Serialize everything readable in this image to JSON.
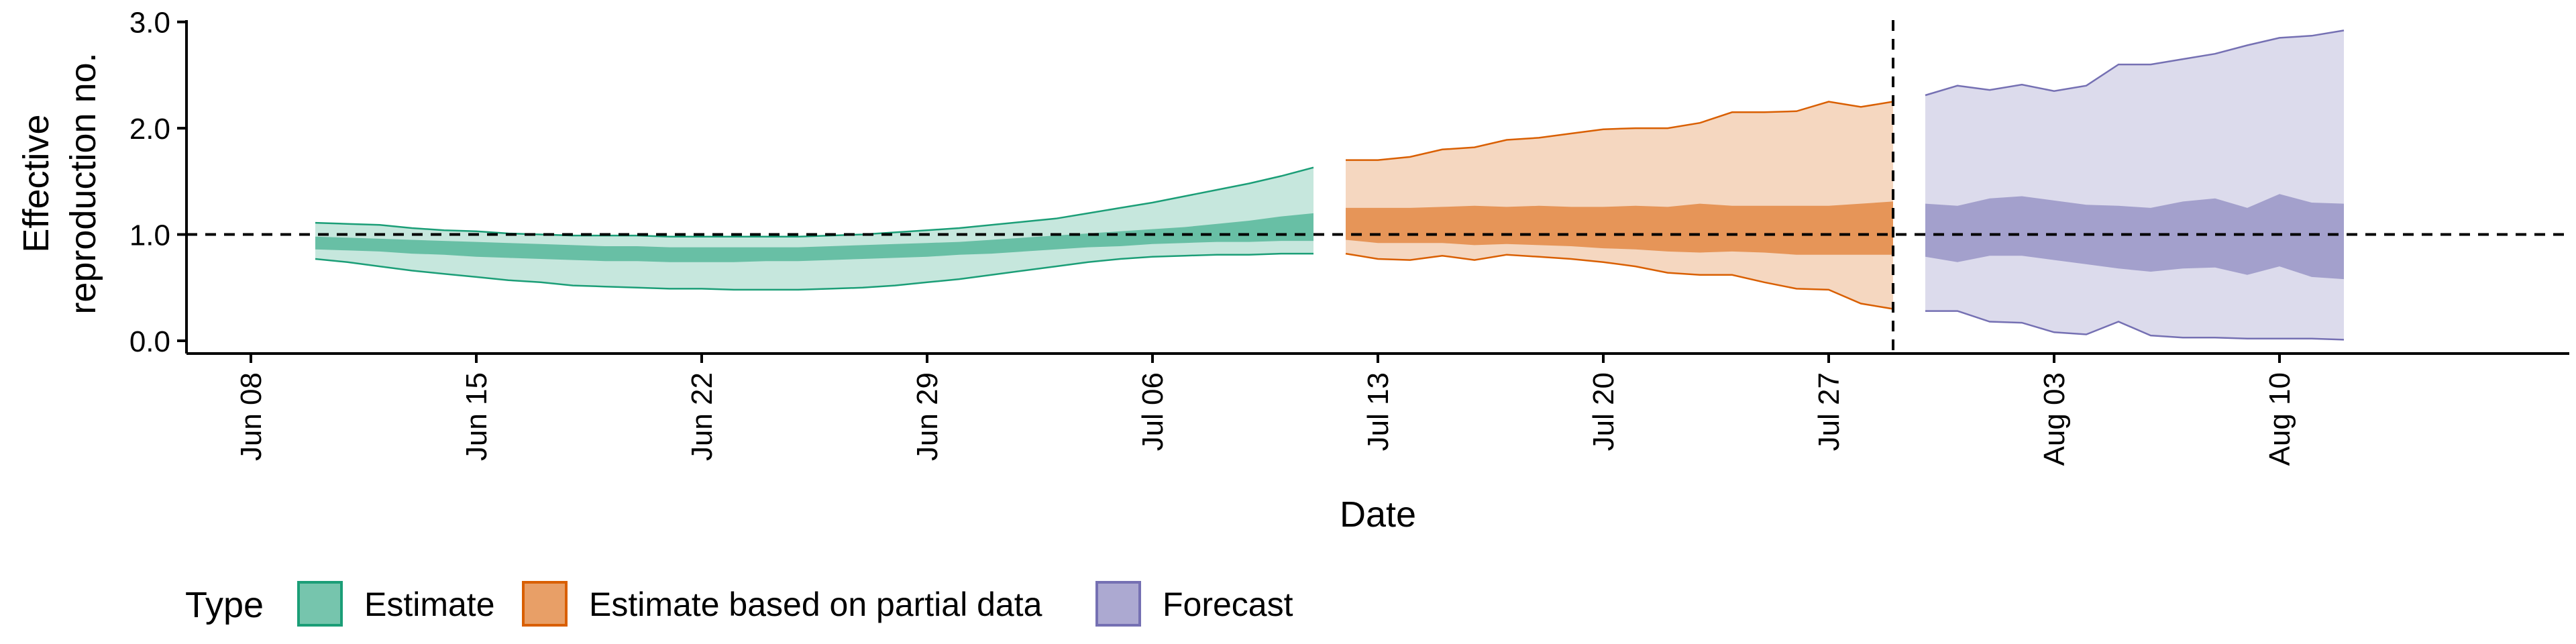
{
  "chart_data": {
    "type": "area",
    "xlabel": "Date",
    "ylabel_line1": "Effective",
    "ylabel_line2": "reproduction no.",
    "x_ticks": [
      {
        "date": "2020-06-08",
        "label": "Jun 08"
      },
      {
        "date": "2020-06-15",
        "label": "Jun 15"
      },
      {
        "date": "2020-06-22",
        "label": "Jun 22"
      },
      {
        "date": "2020-06-29",
        "label": "Jun 29"
      },
      {
        "date": "2020-07-06",
        "label": "Jul 06"
      },
      {
        "date": "2020-07-13",
        "label": "Jul 13"
      },
      {
        "date": "2020-07-20",
        "label": "Jul 20"
      },
      {
        "date": "2020-07-27",
        "label": "Jul 27"
      },
      {
        "date": "2020-08-03",
        "label": "Aug 03"
      },
      {
        "date": "2020-08-10",
        "label": "Aug 10"
      }
    ],
    "y_ticks": [
      {
        "value": 0,
        "label": "0.0"
      },
      {
        "value": 1,
        "label": "1.0"
      },
      {
        "value": 2,
        "label": "2.0"
      },
      {
        "value": 3,
        "label": "3.0"
      }
    ],
    "xlim": [
      "2020-06-06",
      "2020-08-19"
    ],
    "ylim": [
      -0.12,
      3.08
    ],
    "reference_line_y": 1.0,
    "vertical_line_x": "2020-07-29",
    "legend": {
      "title": "Type",
      "position": "bottom-left",
      "items": [
        {
          "label": "Estimate",
          "fill": "#1b9e77",
          "stroke": "#1b9e77"
        },
        {
          "label": "Estimate based on partial data",
          "fill": "#d95f02",
          "stroke": "#d95f02"
        },
        {
          "label": "Forecast",
          "fill": "#7570b3",
          "stroke": "#7570b3"
        }
      ]
    },
    "series": [
      {
        "name": "Estimate",
        "color": "#1b9e77",
        "x": [
          "2020-06-10",
          "2020-06-11",
          "2020-06-12",
          "2020-06-13",
          "2020-06-14",
          "2020-06-15",
          "2020-06-16",
          "2020-06-17",
          "2020-06-18",
          "2020-06-19",
          "2020-06-20",
          "2020-06-21",
          "2020-06-22",
          "2020-06-23",
          "2020-06-24",
          "2020-06-25",
          "2020-06-26",
          "2020-06-27",
          "2020-06-28",
          "2020-06-29",
          "2020-06-30",
          "2020-07-01",
          "2020-07-02",
          "2020-07-03",
          "2020-07-04",
          "2020-07-05",
          "2020-07-06",
          "2020-07-07",
          "2020-07-08",
          "2020-07-09",
          "2020-07-10",
          "2020-07-11"
        ],
        "outer_upper": [
          1.11,
          1.1,
          1.09,
          1.06,
          1.04,
          1.03,
          1.01,
          1.0,
          0.99,
          0.99,
          0.99,
          0.98,
          0.98,
          0.98,
          0.98,
          0.98,
          0.99,
          1.0,
          1.02,
          1.04,
          1.06,
          1.09,
          1.12,
          1.15,
          1.2,
          1.25,
          1.3,
          1.36,
          1.42,
          1.48,
          1.55,
          1.63
        ],
        "outer_lower": [
          0.77,
          0.74,
          0.7,
          0.66,
          0.63,
          0.6,
          0.57,
          0.55,
          0.52,
          0.51,
          0.5,
          0.49,
          0.49,
          0.48,
          0.48,
          0.48,
          0.49,
          0.5,
          0.52,
          0.55,
          0.58,
          0.62,
          0.66,
          0.7,
          0.74,
          0.77,
          0.79,
          0.8,
          0.81,
          0.81,
          0.82,
          0.82
        ],
        "inner_upper": [
          0.98,
          0.97,
          0.96,
          0.95,
          0.94,
          0.93,
          0.92,
          0.91,
          0.9,
          0.89,
          0.89,
          0.88,
          0.88,
          0.88,
          0.88,
          0.88,
          0.89,
          0.9,
          0.91,
          0.92,
          0.93,
          0.95,
          0.97,
          0.99,
          1.01,
          1.03,
          1.05,
          1.07,
          1.1,
          1.13,
          1.17,
          1.2
        ],
        "inner_lower": [
          0.86,
          0.85,
          0.84,
          0.82,
          0.81,
          0.79,
          0.78,
          0.77,
          0.76,
          0.75,
          0.75,
          0.74,
          0.74,
          0.74,
          0.75,
          0.75,
          0.76,
          0.77,
          0.78,
          0.79,
          0.81,
          0.82,
          0.84,
          0.86,
          0.88,
          0.89,
          0.91,
          0.92,
          0.93,
          0.93,
          0.94,
          0.94
        ]
      },
      {
        "name": "Estimate based on partial data",
        "color": "#d95f02",
        "x": [
          "2020-07-12",
          "2020-07-13",
          "2020-07-14",
          "2020-07-15",
          "2020-07-16",
          "2020-07-17",
          "2020-07-18",
          "2020-07-19",
          "2020-07-20",
          "2020-07-21",
          "2020-07-22",
          "2020-07-23",
          "2020-07-24",
          "2020-07-25",
          "2020-07-26",
          "2020-07-27",
          "2020-07-28",
          "2020-07-29"
        ],
        "outer_upper": [
          1.7,
          1.7,
          1.73,
          1.8,
          1.82,
          1.89,
          1.91,
          1.95,
          1.99,
          2.0,
          2.0,
          2.05,
          2.15,
          2.15,
          2.16,
          2.25,
          2.2,
          2.25
        ],
        "outer_lower": [
          0.82,
          0.77,
          0.76,
          0.8,
          0.76,
          0.81,
          0.79,
          0.77,
          0.74,
          0.7,
          0.64,
          0.62,
          0.62,
          0.55,
          0.49,
          0.48,
          0.35,
          0.3
        ],
        "inner_upper": [
          1.25,
          1.25,
          1.25,
          1.26,
          1.27,
          1.26,
          1.27,
          1.26,
          1.26,
          1.27,
          1.26,
          1.29,
          1.27,
          1.27,
          1.27,
          1.27,
          1.29,
          1.31
        ],
        "inner_lower": [
          0.95,
          0.92,
          0.92,
          0.92,
          0.9,
          0.91,
          0.9,
          0.89,
          0.87,
          0.86,
          0.84,
          0.83,
          0.84,
          0.83,
          0.81,
          0.81,
          0.81,
          0.81
        ]
      },
      {
        "name": "Forecast",
        "color": "#7570b3",
        "x": [
          "2020-07-30",
          "2020-07-31",
          "2020-08-01",
          "2020-08-02",
          "2020-08-03",
          "2020-08-04",
          "2020-08-05",
          "2020-08-06",
          "2020-08-07",
          "2020-08-08",
          "2020-08-09",
          "2020-08-10",
          "2020-08-11",
          "2020-08-12"
        ],
        "outer_upper": [
          2.31,
          2.4,
          2.36,
          2.41,
          2.35,
          2.4,
          2.6,
          2.6,
          2.65,
          2.7,
          2.78,
          2.85,
          2.87,
          2.92
        ],
        "outer_lower": [
          0.28,
          0.28,
          0.18,
          0.17,
          0.08,
          0.06,
          0.18,
          0.05,
          0.03,
          0.03,
          0.02,
          0.02,
          0.02,
          0.01
        ],
        "inner_upper": [
          1.29,
          1.27,
          1.34,
          1.36,
          1.32,
          1.28,
          1.27,
          1.25,
          1.31,
          1.34,
          1.25,
          1.38,
          1.3,
          1.29
        ],
        "inner_lower": [
          0.79,
          0.74,
          0.8,
          0.8,
          0.76,
          0.72,
          0.68,
          0.65,
          0.68,
          0.69,
          0.62,
          0.7,
          0.6,
          0.58
        ]
      }
    ]
  }
}
